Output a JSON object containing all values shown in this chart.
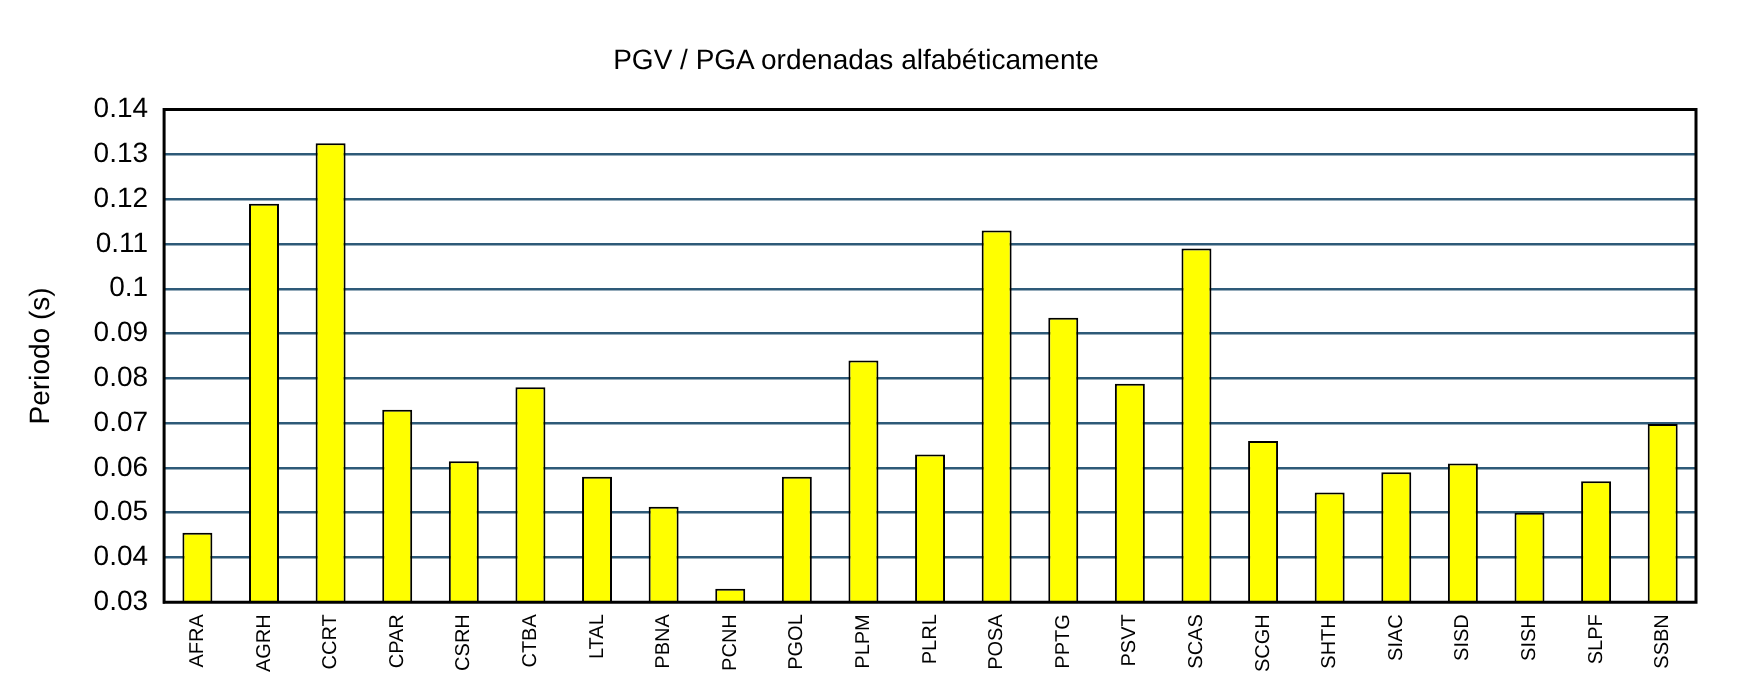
{
  "chart_data": {
    "type": "bar",
    "title": "PGV / PGA ordenadas alfabéticamente",
    "ylabel": "Periodo (s)",
    "categories": [
      "AFRA",
      "AGRH",
      "CCRT",
      "CPAR",
      "CSRH",
      "CTBA",
      "LTAL",
      "PBNA",
      "PCNH",
      "PGOL",
      "PLPM",
      "PLRL",
      "POSA",
      "PPTG",
      "PSVT",
      "SCAS",
      "SCGH",
      "SHTH",
      "SIAC",
      "SISD",
      "SISH",
      "SLPF",
      "SSBN"
    ],
    "values": [
      0.0455,
      0.119,
      0.1325,
      0.073,
      0.0615,
      0.078,
      0.058,
      0.0513,
      0.033,
      0.058,
      0.084,
      0.063,
      0.113,
      0.0935,
      0.0788,
      0.109,
      0.066,
      0.0545,
      0.059,
      0.061,
      0.05,
      0.057,
      0.0698
    ],
    "color": "#ffff00",
    "ylim": [
      0.03,
      0.14
    ],
    "yticks": [
      0.03,
      0.04,
      0.05,
      0.06,
      0.07,
      0.08,
      0.09,
      0.1,
      0.11,
      0.12,
      0.13,
      0.14
    ],
    "grid": "y",
    "legend": false
  }
}
